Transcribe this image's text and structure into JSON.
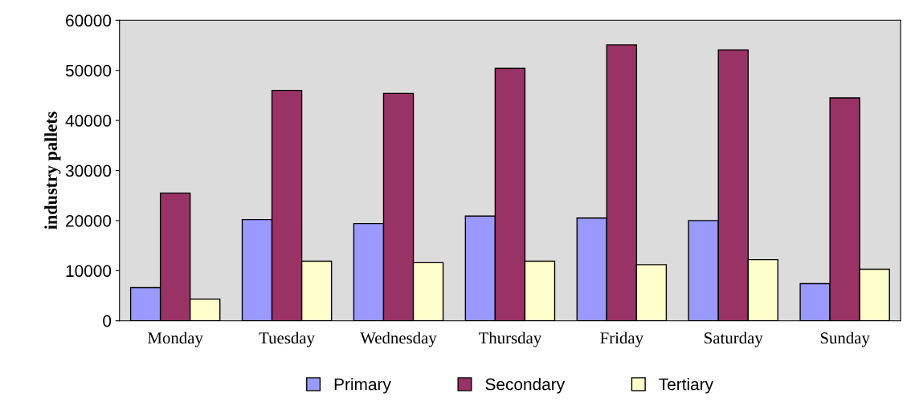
{
  "chart_data": {
    "type": "bar",
    "ylabel": "industry pallets",
    "categories": [
      "Monday",
      "Tuesday",
      "Wednesday",
      "Thursday",
      "Friday",
      "Saturday",
      "Sunday"
    ],
    "series": [
      {
        "name": "Primary",
        "color": "#9999ff",
        "values": [
          6600,
          20200,
          19400,
          20900,
          20500,
          20000,
          7400
        ]
      },
      {
        "name": "Secondary",
        "color": "#993366",
        "values": [
          25500,
          46000,
          45400,
          50400,
          55100,
          54100,
          44500
        ]
      },
      {
        "name": "Tertiary",
        "color": "#ffffcc",
        "values": [
          4300,
          11900,
          11600,
          11900,
          11200,
          12200,
          10300
        ]
      }
    ],
    "ylim": [
      0,
      60000
    ],
    "yticks": [
      0,
      10000,
      20000,
      30000,
      40000,
      50000,
      60000
    ],
    "grid": false,
    "legend": "bottom"
  }
}
